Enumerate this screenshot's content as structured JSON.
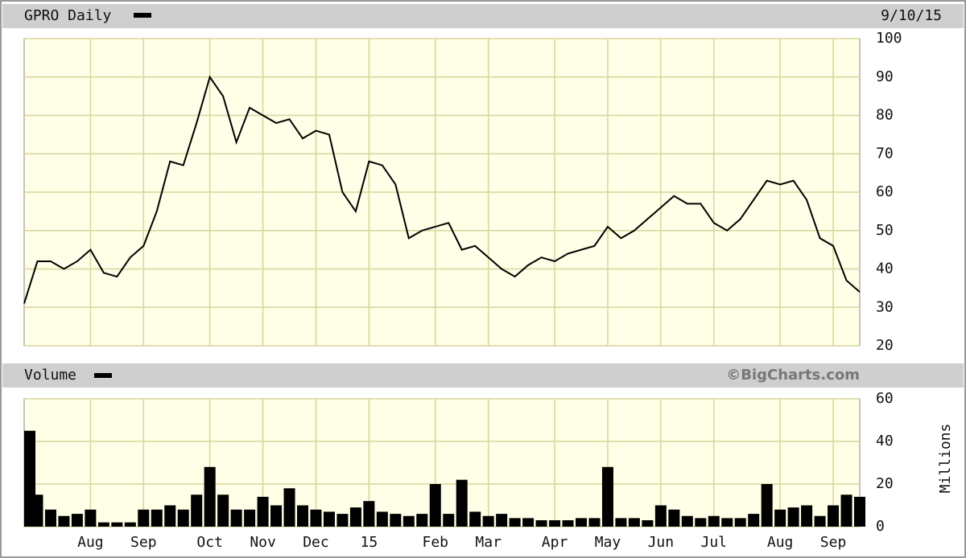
{
  "chart_data": [
    {
      "type": "line",
      "title": "GPRO Daily",
      "date": "9/10/15",
      "color": "#000000",
      "grid": true,
      "ylim": [
        20,
        100
      ],
      "yticks": [
        20,
        30,
        40,
        50,
        60,
        70,
        80,
        90,
        100
      ],
      "values": [
        31,
        42,
        42,
        40,
        42,
        45,
        39,
        38,
        43,
        46,
        55,
        68,
        67,
        78,
        90,
        85,
        73,
        82,
        80,
        78,
        79,
        74,
        76,
        75,
        60,
        55,
        68,
        67,
        62,
        48,
        50,
        51,
        52,
        45,
        46,
        43,
        40,
        38,
        41,
        43,
        42,
        44,
        45,
        46,
        51,
        48,
        50,
        53,
        56,
        59,
        57,
        57,
        52,
        50,
        53,
        58,
        63,
        62,
        63,
        58,
        48,
        46,
        37,
        34
      ]
    },
    {
      "type": "bar",
      "title": "Volume",
      "ylabel": "Millions",
      "source": "©BigCharts.com",
      "color": "#000000",
      "grid": true,
      "ylim": [
        0,
        60
      ],
      "yticks": [
        0,
        20,
        40,
        60
      ],
      "categories": [
        null,
        null,
        null,
        null,
        null,
        "Aug",
        null,
        null,
        null,
        "Sep",
        null,
        null,
        null,
        null,
        "Oct",
        null,
        null,
        null,
        "Nov",
        null,
        null,
        null,
        "Dec",
        null,
        null,
        null,
        "15",
        null,
        null,
        null,
        null,
        "Feb",
        null,
        null,
        null,
        "Mar",
        null,
        null,
        null,
        null,
        "Apr",
        null,
        null,
        null,
        "May",
        null,
        null,
        null,
        "Jun",
        null,
        null,
        null,
        "Jul",
        null,
        null,
        null,
        null,
        "Aug",
        null,
        null,
        null,
        "Sep",
        null,
        null
      ],
      "values": [
        45,
        15,
        8,
        5,
        6,
        8,
        2,
        2,
        2,
        8,
        8,
        10,
        8,
        15,
        28,
        15,
        8,
        8,
        14,
        10,
        18,
        10,
        8,
        7,
        6,
        9,
        12,
        7,
        6,
        5,
        6,
        20,
        6,
        22,
        7,
        5,
        6,
        4,
        4,
        3,
        3,
        3,
        4,
        4,
        28,
        4,
        4,
        3,
        10,
        8,
        5,
        4,
        5,
        4,
        4,
        6,
        20,
        8,
        9,
        10,
        5,
        10,
        15,
        14
      ]
    }
  ]
}
